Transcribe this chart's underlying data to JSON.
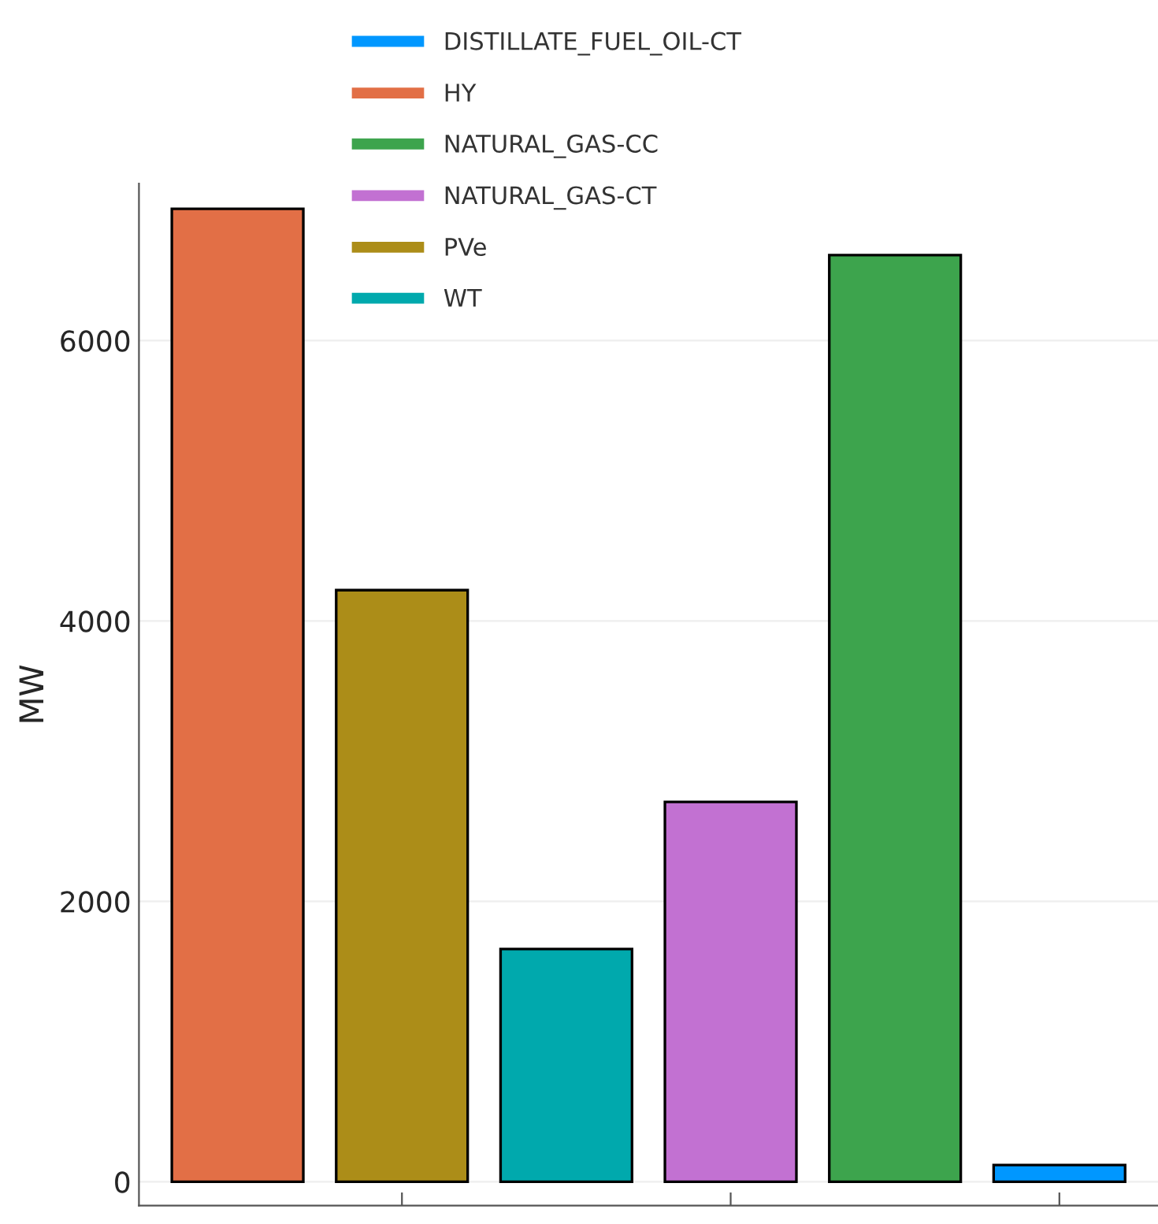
{
  "chart_data": {
    "type": "bar",
    "ylabel": "MW",
    "categories": [
      null,
      null,
      null,
      null,
      null,
      null
    ],
    "series": [
      {
        "name": "DISTILLATE_FUEL_OIL-CT",
        "color": "#0097ff",
        "values": [
          null,
          null,
          null,
          null,
          null,
          120
        ]
      },
      {
        "name": "HY",
        "color": "#e26f46",
        "values": [
          6940,
          null,
          null,
          null,
          null,
          null
        ]
      },
      {
        "name": "NATURAL_GAS-CC",
        "color": "#3da44d",
        "values": [
          null,
          null,
          null,
          null,
          6610,
          null
        ]
      },
      {
        "name": "NATURAL_GAS-CT",
        "color": "#c271d2",
        "values": [
          null,
          null,
          null,
          2710,
          null,
          null
        ]
      },
      {
        "name": "PVe",
        "color": "#ac8d18",
        "values": [
          null,
          4220,
          null,
          null,
          null,
          null
        ]
      },
      {
        "name": "WT",
        "color": "#00a9ad",
        "values": [
          null,
          null,
          1660,
          null,
          null,
          null
        ]
      }
    ],
    "ylim": [
      -170,
      7120
    ],
    "yticks": [
      0,
      2000,
      4000,
      6000
    ],
    "grid": "y",
    "legend": "top"
  }
}
